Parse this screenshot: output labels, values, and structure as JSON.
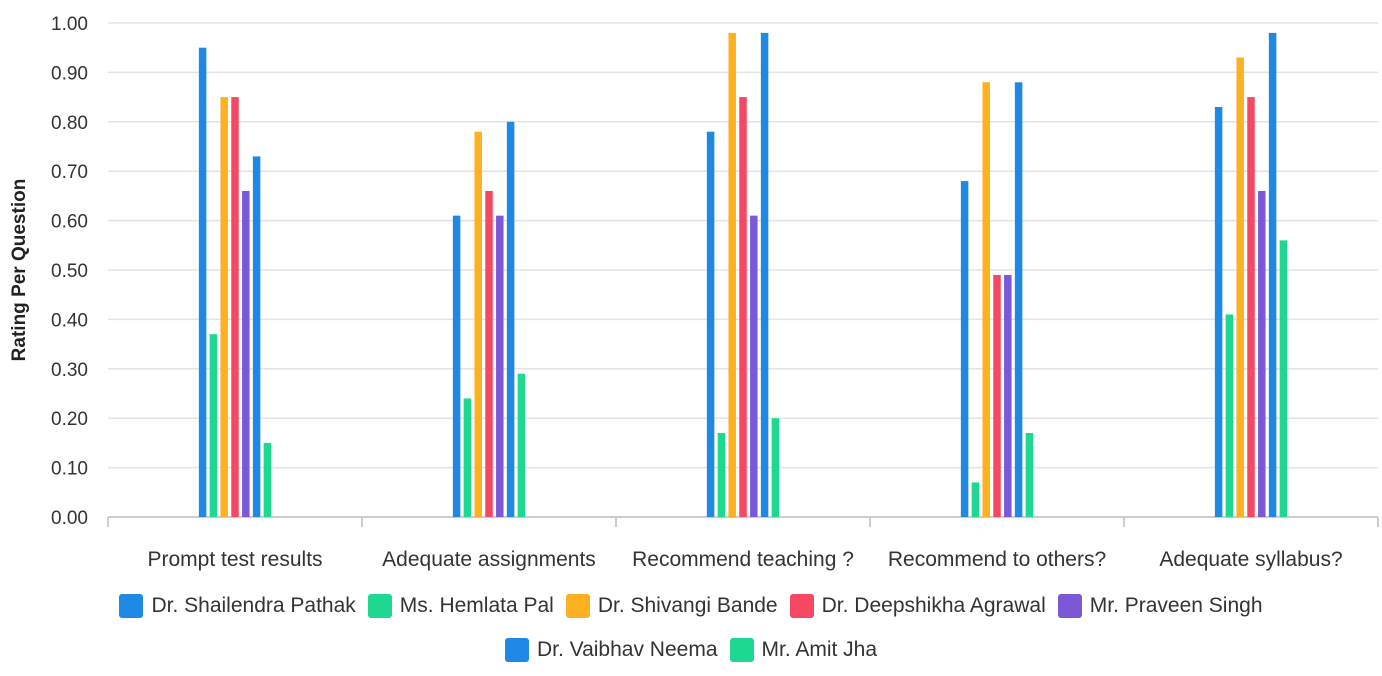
{
  "chart_data": {
    "type": "bar",
    "ylabel": "Rating Per Question",
    "ylim": [
      0,
      1
    ],
    "yticks": [
      "0.00",
      "0.10",
      "0.20",
      "0.30",
      "0.40",
      "0.50",
      "0.60",
      "0.70",
      "0.80",
      "0.90",
      "1.00"
    ],
    "grid": true,
    "legend_position": "bottom",
    "categories": [
      "Prompt test results",
      "Adequate assignments",
      "Recommend teaching ?",
      "Recommend to others?",
      "Adequate syllabus?"
    ],
    "series": [
      {
        "name": "Dr. Shailendra Pathak",
        "color": "#1E88E5",
        "values": [
          0.95,
          0.61,
          0.78,
          0.68,
          0.83
        ]
      },
      {
        "name": "Ms. Hemlata Pal",
        "color": "#1ED891",
        "values": [
          0.37,
          0.24,
          0.17,
          0.07,
          0.41
        ]
      },
      {
        "name": "Dr. Shivangi Bande",
        "color": "#FDB022",
        "values": [
          0.85,
          0.78,
          0.98,
          0.88,
          0.93
        ]
      },
      {
        "name": "Dr. Deepshikha Agrawal",
        "color": "#F64862",
        "values": [
          0.85,
          0.66,
          0.85,
          0.49,
          0.85
        ]
      },
      {
        "name": "Mr. Praveen Singh",
        "color": "#7B58D6",
        "values": [
          0.66,
          0.61,
          0.61,
          0.49,
          0.66
        ]
      },
      {
        "name": "Dr. Vaibhav Neema",
        "color": "#1E88E5",
        "values": [
          0.73,
          0.8,
          0.98,
          0.88,
          0.98
        ]
      },
      {
        "name": "Mr. Amit Jha",
        "color": "#1ED891",
        "values": [
          0.15,
          0.29,
          0.2,
          0.17,
          0.56
        ]
      }
    ]
  }
}
